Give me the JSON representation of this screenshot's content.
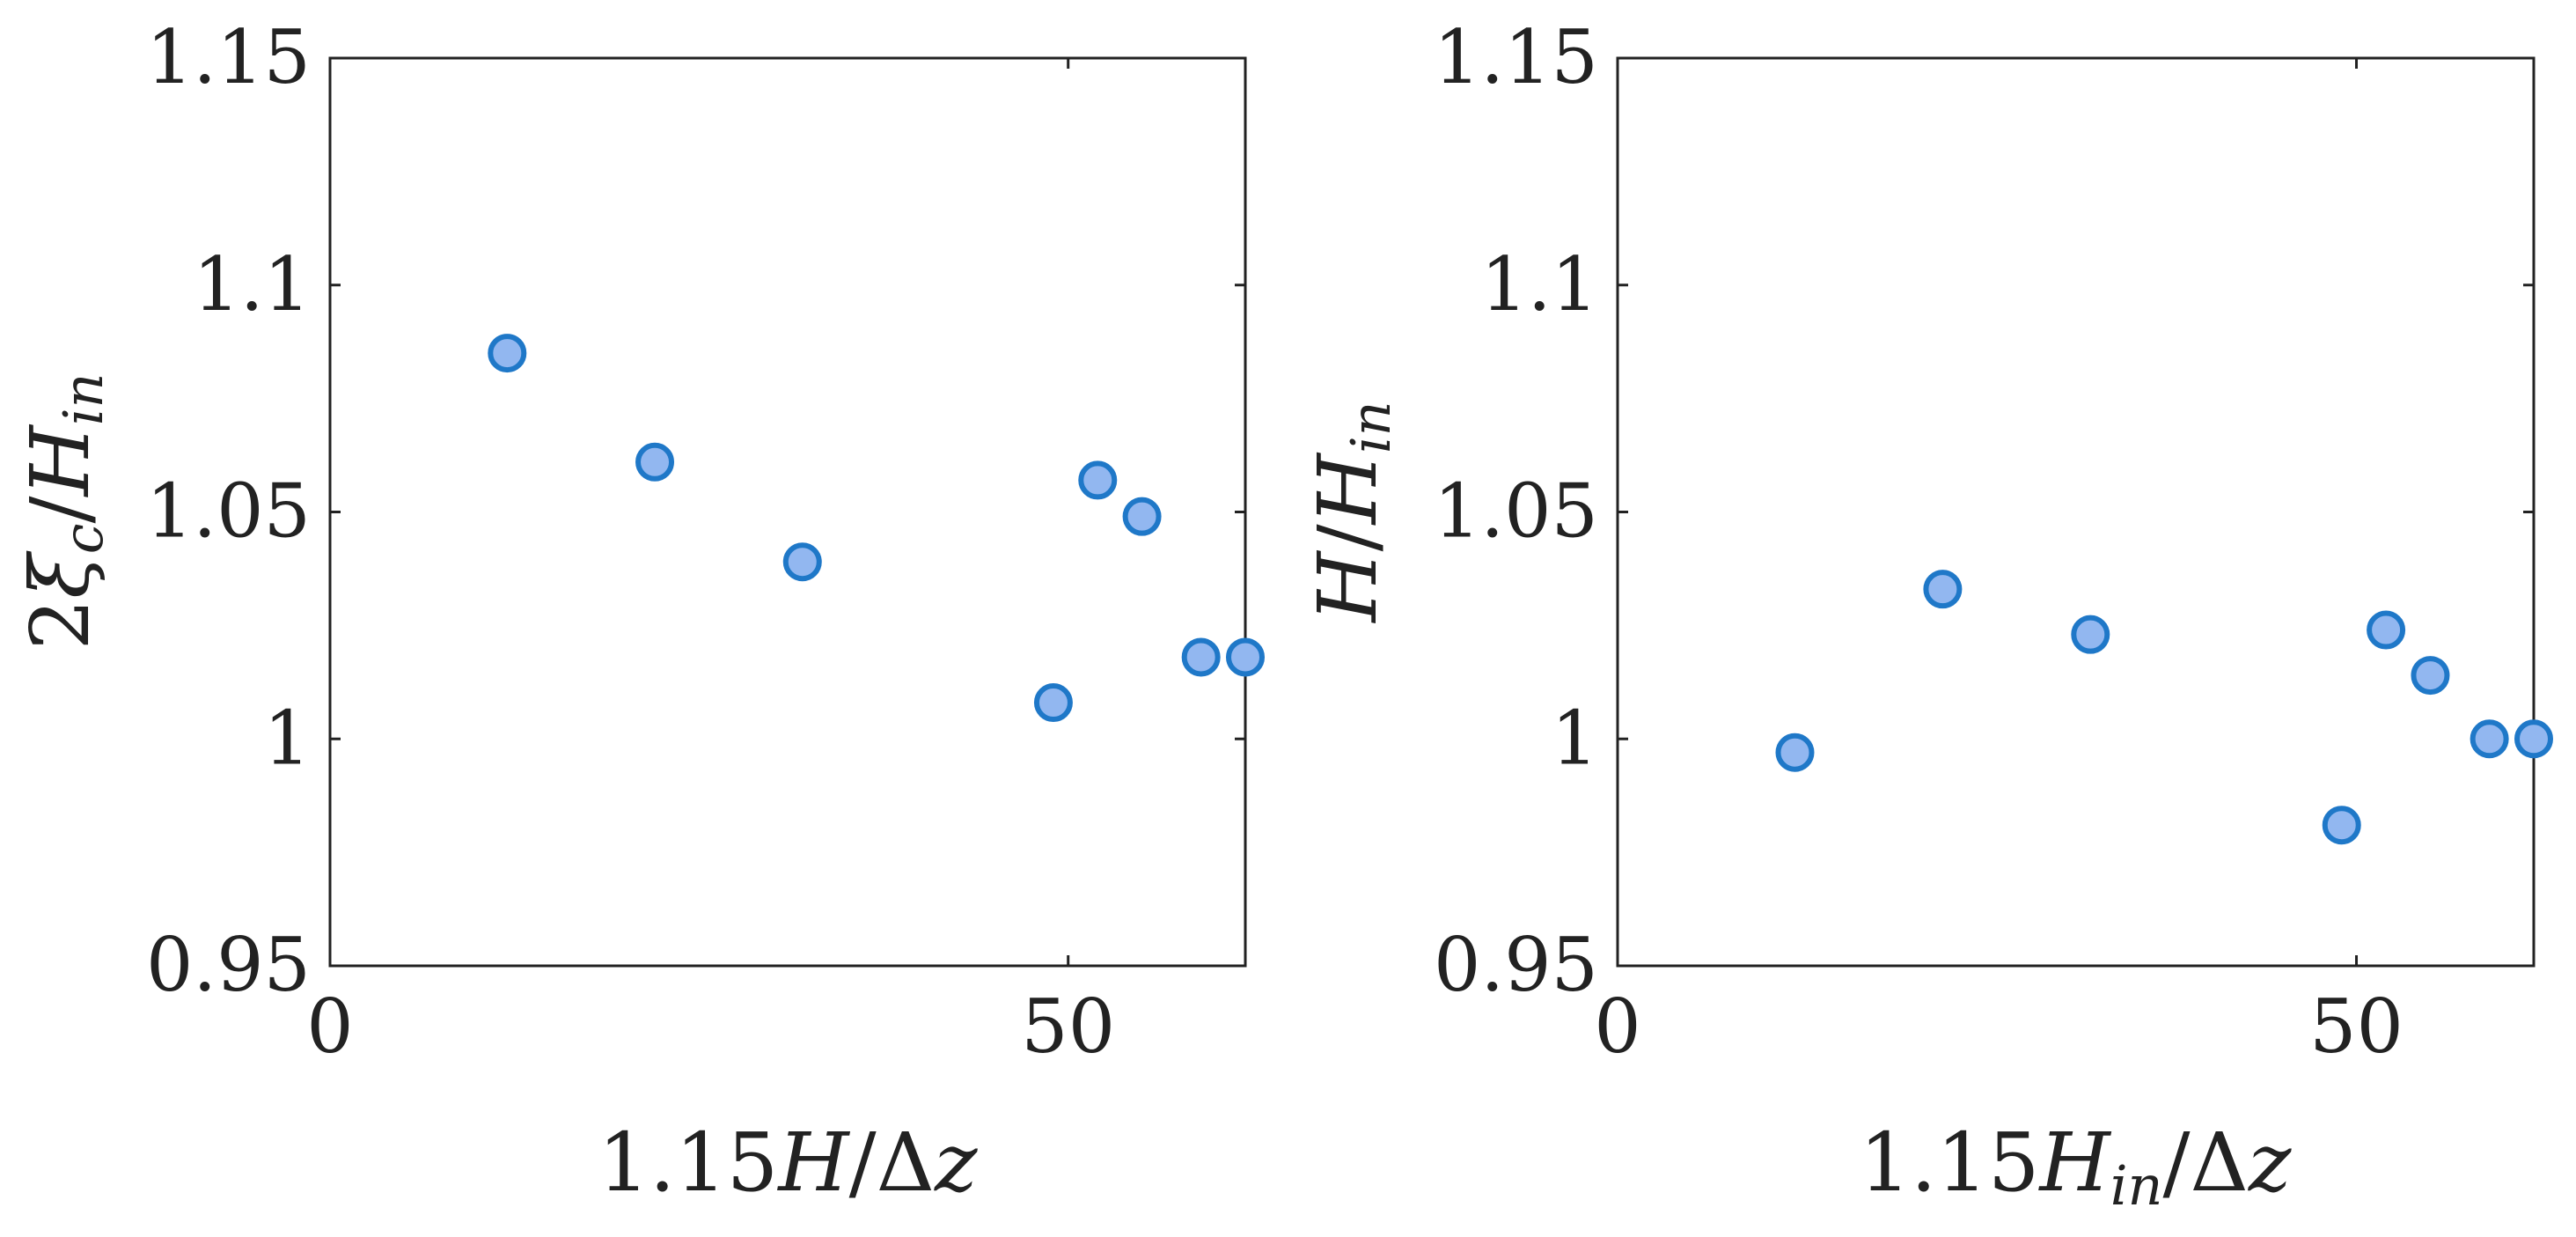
{
  "chart_data": [
    {
      "type": "scatter",
      "xlabel": "1.15H/Δz",
      "ylabel": "2ξc/Hin",
      "xlim": [
        0,
        62
      ],
      "ylim": [
        0.95,
        1.15
      ],
      "xticks": [
        0,
        50
      ],
      "xtick_labels": [
        "0",
        "50"
      ],
      "yticks": [
        0.95,
        1.0,
        1.05,
        1.1,
        1.15
      ],
      "ytick_labels": [
        "0.95",
        "1",
        "1.05",
        "1.1",
        "1.15"
      ],
      "grid": false,
      "series": [
        {
          "marker_color": "#92b7f0",
          "edge_color": "#1f78c8",
          "points": [
            {
              "x": 12,
              "y": 1.085
            },
            {
              "x": 22,
              "y": 1.061
            },
            {
              "x": 32,
              "y": 1.039
            },
            {
              "x": 49,
              "y": 1.008
            },
            {
              "x": 52,
              "y": 1.057
            },
            {
              "x": 55,
              "y": 1.049
            },
            {
              "x": 59,
              "y": 1.018
            },
            {
              "x": 62,
              "y": 1.018
            }
          ]
        }
      ]
    },
    {
      "type": "scatter",
      "xlabel": "1.15Hin/Δz",
      "ylabel": "H/Hin",
      "xlim": [
        0,
        62
      ],
      "ylim": [
        0.95,
        1.15
      ],
      "xticks": [
        0,
        50
      ],
      "xtick_labels": [
        "0",
        "50"
      ],
      "yticks": [
        0.95,
        1.0,
        1.05,
        1.1,
        1.15
      ],
      "ytick_labels": [
        "0.95",
        "1",
        "1.05",
        "1.1",
        "1.15"
      ],
      "grid": false,
      "series": [
        {
          "marker_color": "#92b7f0",
          "edge_color": "#1f78c8",
          "points": [
            {
              "x": 12,
              "y": 0.997
            },
            {
              "x": 22,
              "y": 1.033
            },
            {
              "x": 32,
              "y": 1.023
            },
            {
              "x": 49,
              "y": 0.981
            },
            {
              "x": 52,
              "y": 1.024
            },
            {
              "x": 55,
              "y": 1.014
            },
            {
              "x": 59,
              "y": 1.0
            },
            {
              "x": 62,
              "y": 1.0
            }
          ]
        }
      ]
    }
  ]
}
